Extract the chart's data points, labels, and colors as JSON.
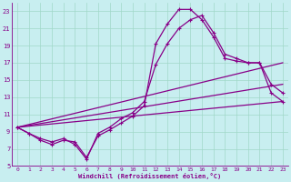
{
  "xlabel": "Windchill (Refroidissement éolien,°C)",
  "bg_color": "#c8eef0",
  "grid_color": "#a0d8c8",
  "line_color": "#880088",
  "xlim": [
    -0.5,
    23.5
  ],
  "ylim": [
    5,
    24
  ],
  "xticks": [
    0,
    1,
    2,
    3,
    4,
    5,
    6,
    7,
    8,
    9,
    10,
    11,
    12,
    13,
    14,
    15,
    16,
    17,
    18,
    19,
    20,
    21,
    22,
    23
  ],
  "yticks": [
    5,
    7,
    9,
    11,
    13,
    15,
    17,
    19,
    21,
    23
  ],
  "curve1_x": [
    0,
    1,
    2,
    3,
    4,
    5,
    6,
    7,
    8,
    9,
    10,
    11,
    12,
    13,
    14,
    15,
    16,
    17,
    18,
    19,
    20,
    21,
    22,
    23
  ],
  "curve1_y": [
    9.5,
    8.8,
    8.2,
    7.8,
    8.2,
    7.5,
    5.8,
    8.8,
    9.5,
    10.5,
    11.2,
    12.5,
    16.8,
    19.2,
    21.0,
    22.0,
    22.5,
    20.5,
    18.0,
    17.5,
    17.0,
    17.0,
    14.5,
    13.5
  ],
  "curve2_x": [
    0,
    1,
    2,
    3,
    4,
    5,
    6,
    7,
    8,
    9,
    10,
    11,
    12,
    13,
    14,
    15,
    16,
    17,
    18,
    19,
    20,
    21,
    22,
    23
  ],
  "curve2_y": [
    9.5,
    8.8,
    8.0,
    7.5,
    8.0,
    7.8,
    6.0,
    8.5,
    9.2,
    10.0,
    10.8,
    12.0,
    19.2,
    21.5,
    23.2,
    23.2,
    22.0,
    20.0,
    17.5,
    17.2,
    17.0,
    17.0,
    13.5,
    12.5
  ],
  "line1_x": [
    0,
    23
  ],
  "line1_y": [
    9.5,
    12.5
  ],
  "line2_x": [
    0,
    23
  ],
  "line2_y": [
    9.5,
    14.5
  ],
  "line3_x": [
    0,
    23
  ],
  "line3_y": [
    9.5,
    17.0
  ],
  "marker_style": "+",
  "marker_size": 3,
  "line_width": 0.9,
  "tick_fontsize": 4.5,
  "xlabel_fontsize": 5.0
}
